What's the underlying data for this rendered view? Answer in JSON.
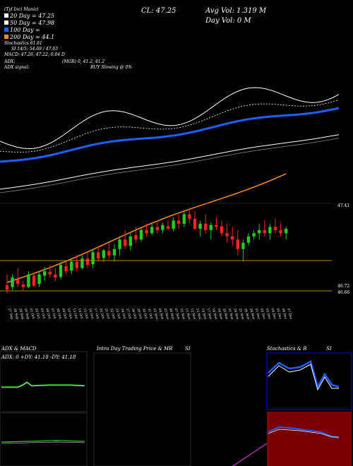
{
  "header": {
    "title_line": "(Tyl Inc) Munici",
    "cl": "CL: 47.25",
    "avg_vol": "Avg Vol: 1.319 M",
    "day_vol": "Day Vol: 0   M",
    "legend": [
      {
        "label": "20  Day = 47.25",
        "color": "#ffffff"
      },
      {
        "label": "50  Day = 47.98",
        "color": "#ffffff"
      },
      {
        "label": "100  Day =",
        "color": "#1f5fff"
      },
      {
        "label": "200  Day = 44.1",
        "color": "#ff8c1a"
      }
    ],
    "stochastics": "Stochastics 61.61",
    "si": "SI 14/5: 54.69 / 47.63",
    "macd": "MACD: 47.26, 47.22, 0.04  D",
    "adx": "ADX:",
    "adx_signal": "ADX  signal:",
    "mgr": "(MGR) 0, 41.2, 41.2",
    "buy": "BUY Slowing @ 0%"
  },
  "price_labels": {
    "top": "47.41",
    "low1": "46.72",
    "low2": "46.66"
  },
  "colors": {
    "up": "#22cc22",
    "down": "#ff2222",
    "ma100": "#1f5fff",
    "ma200": "#ff8c1a",
    "panel_red": "#8b0000",
    "panel_blue": "#0000aa"
  },
  "panels": {
    "adx_title": "ADX  & MACD",
    "adx_values": "ADX: 0   +DY: 41.18   -DY: 41.18",
    "intra_title": "Intra  Day Trading Price  & MR",
    "si_title": "SI",
    "stoch_title": "Stochastics & R",
    "stoch_si": "SI"
  },
  "chart_data": {
    "type": "candlestick",
    "x": [
      "27 Sep",
      "28 Sep",
      "29 Sep",
      "30 Sep",
      "01 Oct",
      "02 Oct",
      "03 Oct",
      "06 Oct",
      "07 Oct",
      "08 Oct",
      "09 Oct",
      "10 Oct",
      "13 Oct",
      "14 Oct",
      "15 Oct",
      "16 Oct",
      "17 Oct",
      "20 Oct",
      "21 Oct",
      "22 Oct",
      "23 Oct",
      "24 Oct",
      "27 Oct",
      "28 Oct",
      "29 Oct",
      "30 Oct",
      "31 Oct",
      "03 Nov",
      "04 Nov",
      "05 Nov",
      "06 Nov",
      "07 Nov",
      "10 Nov",
      "11 Nov",
      "12 Nov",
      "13 Nov",
      "14 Nov",
      "17 Nov",
      "18 Nov",
      "19 Nov",
      "20 Nov",
      "21 Nov",
      "24 Nov",
      "25 Nov",
      "26 Nov",
      "28 Nov",
      "01 Dec",
      "02 Dec",
      "03 Dec",
      "04 Dec",
      "05 Dec",
      "06 Dec",
      "07 Dec"
    ],
    "candles": [
      [
        46.73,
        46.9,
        46.6,
        46.66
      ],
      [
        46.7,
        46.9,
        46.65,
        46.85
      ],
      [
        46.82,
        47.0,
        46.7,
        46.75
      ],
      [
        46.74,
        46.8,
        46.65,
        46.7
      ],
      [
        46.7,
        46.95,
        46.68,
        46.9
      ],
      [
        46.88,
        46.92,
        46.7,
        46.72
      ],
      [
        46.75,
        46.95,
        46.7,
        46.9
      ],
      [
        46.88,
        47.02,
        46.8,
        46.95
      ],
      [
        46.94,
        47.05,
        46.85,
        46.9
      ],
      [
        46.9,
        47.0,
        46.8,
        46.85
      ],
      [
        46.86,
        47.1,
        46.82,
        47.05
      ],
      [
        47.03,
        47.1,
        46.9,
        46.95
      ],
      [
        46.96,
        47.15,
        46.9,
        47.1
      ],
      [
        47.1,
        47.2,
        46.95,
        47.0
      ],
      [
        47.0,
        47.2,
        46.98,
        47.15
      ],
      [
        47.15,
        47.25,
        47.0,
        47.05
      ],
      [
        47.06,
        47.3,
        47.0,
        47.25
      ],
      [
        47.25,
        47.35,
        47.1,
        47.15
      ],
      [
        47.16,
        47.3,
        47.1,
        47.28
      ],
      [
        47.27,
        47.4,
        47.15,
        47.2
      ],
      [
        47.2,
        47.38,
        47.1,
        47.3
      ],
      [
        47.3,
        47.5,
        47.2,
        47.45
      ],
      [
        47.45,
        47.6,
        47.3,
        47.35
      ],
      [
        47.35,
        47.55,
        47.28,
        47.5
      ],
      [
        47.52,
        47.65,
        47.4,
        47.45
      ],
      [
        47.45,
        47.65,
        47.42,
        47.6
      ],
      [
        47.6,
        47.7,
        47.5,
        47.55
      ],
      [
        47.55,
        47.7,
        47.52,
        47.65
      ],
      [
        47.65,
        47.75,
        47.55,
        47.6
      ],
      [
        47.6,
        47.72,
        47.55,
        47.68
      ],
      [
        47.66,
        47.75,
        47.6,
        47.62
      ],
      [
        47.62,
        47.8,
        47.58,
        47.75
      ],
      [
        47.75,
        47.85,
        47.62,
        47.7
      ],
      [
        47.7,
        47.9,
        47.65,
        47.85
      ],
      [
        47.85,
        47.95,
        47.7,
        47.78
      ],
      [
        47.78,
        47.9,
        47.6,
        47.62
      ],
      [
        47.62,
        47.75,
        47.5,
        47.7
      ],
      [
        47.7,
        47.85,
        47.55,
        47.6
      ],
      [
        47.6,
        47.72,
        47.45,
        47.68
      ],
      [
        47.68,
        47.8,
        47.6,
        47.65
      ],
      [
        47.66,
        47.75,
        47.5,
        47.55
      ],
      [
        47.55,
        47.7,
        47.4,
        47.5
      ],
      [
        47.5,
        47.65,
        47.35,
        47.45
      ],
      [
        47.45,
        47.6,
        47.2,
        47.3
      ],
      [
        47.3,
        47.45,
        47.1,
        47.4
      ],
      [
        47.4,
        47.55,
        47.35,
        47.5
      ],
      [
        47.5,
        47.6,
        47.45,
        47.55
      ],
      [
        47.55,
        47.7,
        47.45,
        47.6
      ],
      [
        47.6,
        47.75,
        47.5,
        47.55
      ],
      [
        47.55,
        47.7,
        47.45,
        47.65
      ],
      [
        47.65,
        47.78,
        47.55,
        47.6
      ],
      [
        47.6,
        47.7,
        47.5,
        47.55
      ],
      [
        47.55,
        47.65,
        47.45,
        47.62
      ]
    ]
  }
}
